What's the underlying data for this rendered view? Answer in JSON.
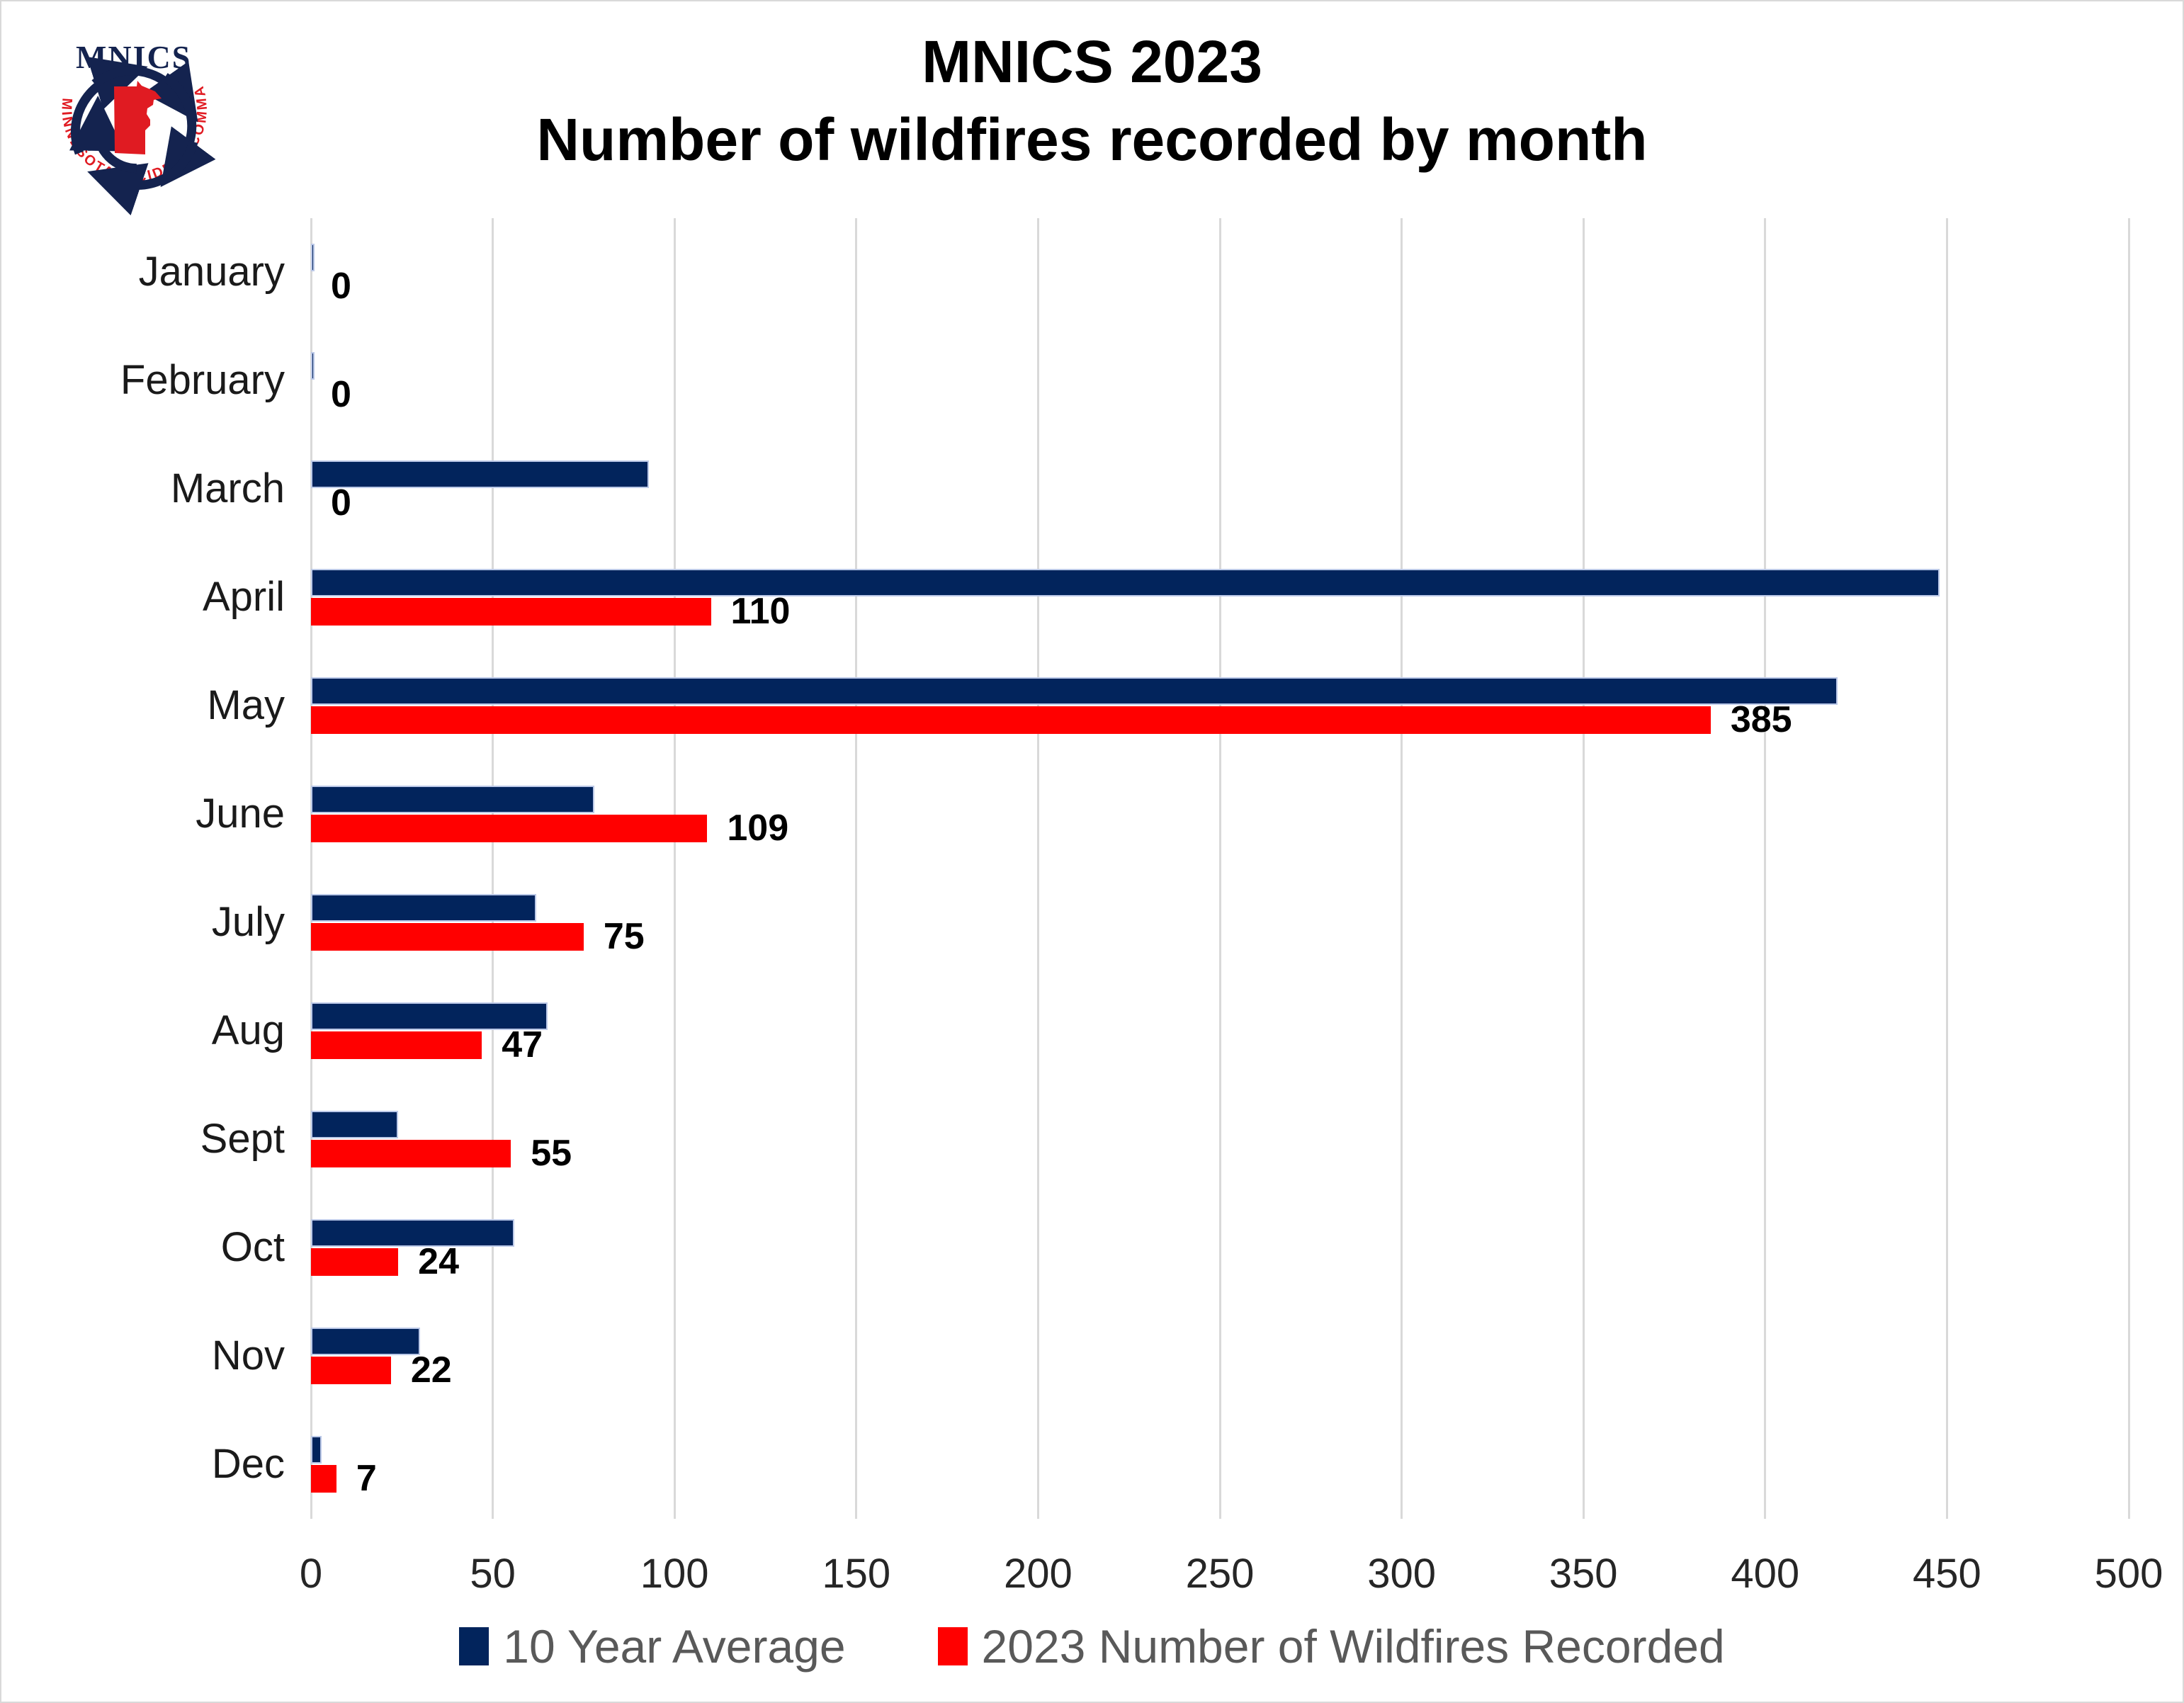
{
  "logo": {
    "acronym": "MNICS",
    "circle_text": "MINNESOTA INCIDENT COMMAND SYSTEM",
    "navy": "#14234f",
    "red": "#e01b22"
  },
  "title": {
    "line1": "MNICS 2023",
    "line2": "Number of wildfires recorded by month"
  },
  "chart_data": {
    "type": "bar",
    "orientation": "horizontal",
    "title": "MNICS 2023 Number of wildfires recorded by month",
    "categories": [
      "January",
      "February",
      "March",
      "April",
      "May",
      "June",
      "July",
      "Aug",
      "Sept",
      "Oct",
      "Nov",
      "Dec"
    ],
    "series": [
      {
        "name": "10 Year Average",
        "color": "#02245c",
        "values": [
          1,
          1,
          93,
          448,
          420,
          78,
          62,
          65,
          24,
          56,
          30,
          3
        ]
      },
      {
        "name": "2023 Number of Wildfires Recorded",
        "color": "#ff0000",
        "values": [
          0,
          0,
          0,
          110,
          385,
          109,
          75,
          47,
          55,
          24,
          22,
          7
        ]
      }
    ],
    "data_labels": {
      "series": "2023 Number of Wildfires Recorded",
      "values": [
        "0",
        "0",
        "0",
        "110",
        "385",
        "109",
        "75",
        "47",
        "55",
        "24",
        "22",
        "7"
      ]
    },
    "xlabel": "",
    "ylabel": "",
    "xlim": [
      0,
      500
    ],
    "xticks": [
      0,
      50,
      100,
      150,
      200,
      250,
      300,
      350,
      400,
      450,
      500
    ],
    "grid": "vertical",
    "gridline_color": "#d9d9d9",
    "legend_position": "bottom"
  },
  "legend": {
    "items": [
      {
        "label": "10 Year Average",
        "color": "#02245c"
      },
      {
        "label": "2023 Number of Wildfires Recorded",
        "color": "#ff0000"
      }
    ]
  }
}
